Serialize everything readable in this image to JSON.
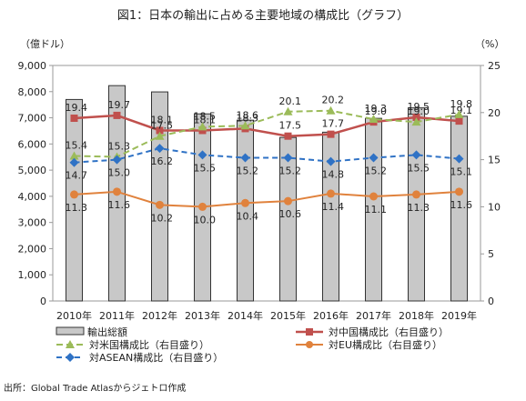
{
  "title": "図1：日本の輸出に占める主要地域の構成比（グラフ）",
  "unit_left": "（億ドル）",
  "unit_right": "（%）",
  "source": "出所：Global Trade Atlasからジェトロ作成",
  "colors": {
    "bar": "#c8c8c8",
    "china": "#c0504d",
    "usa": "#9bbb59",
    "eu": "#e0823d",
    "asean": "#2f72c5"
  },
  "chart_data": {
    "type": "bar+line",
    "categories": [
      "2010年",
      "2011年",
      "2012年",
      "2013年",
      "2014年",
      "2015年",
      "2016年",
      "2017年",
      "2018年",
      "2019年"
    ],
    "y_left": {
      "min": 0,
      "max": 9000,
      "step": 1000
    },
    "y_right": {
      "min": 0,
      "max": 25,
      "step": 5
    },
    "left_ticks": [
      "0",
      "1,000",
      "2,000",
      "3,000",
      "4,000",
      "5,000",
      "6,000",
      "7,000",
      "8,000",
      "9,000"
    ],
    "right_ticks": [
      "0",
      "5",
      "10",
      "15",
      "20",
      "25"
    ],
    "bars": {
      "name": "輸出総額",
      "values": [
        7700,
        8230,
        7990,
        7150,
        6910,
        6250,
        6450,
        6980,
        7380,
        7060
      ]
    },
    "series": [
      {
        "key": "china",
        "name": "対中国構成比（右目盛り）",
        "values": [
          19.4,
          19.7,
          18.1,
          18.1,
          18.3,
          17.5,
          17.7,
          19.0,
          19.5,
          19.1
        ],
        "labels": [
          "19.4",
          "19.7",
          "18.1",
          "18.1",
          "18.3",
          "17.5",
          "17.7",
          "19.0",
          "19.5",
          "19.1"
        ]
      },
      {
        "key": "usa",
        "name": "対米国構成比（右目盛り）",
        "values": [
          15.4,
          15.3,
          17.5,
          18.5,
          18.6,
          20.1,
          20.2,
          19.3,
          19.0,
          19.8
        ],
        "labels": [
          "15.4",
          "15.3",
          "17.5",
          "18.5",
          "18.6",
          "20.1",
          "20.2",
          "19.3",
          "19.0",
          "19.8"
        ]
      },
      {
        "key": "asean",
        "name": "対ASEAN構成比（右目盛り）",
        "values": [
          14.7,
          15.0,
          16.2,
          15.5,
          15.2,
          15.2,
          14.8,
          15.2,
          15.5,
          15.1
        ],
        "labels": [
          "14.7",
          "15.0",
          "16.2",
          "15.5",
          "15.2",
          "15.2",
          "14.8",
          "15.2",
          "15.5",
          "15.1"
        ]
      },
      {
        "key": "eu",
        "name": "対EU構成比（右目盛り）",
        "values": [
          11.3,
          11.6,
          10.2,
          10.0,
          10.4,
          10.6,
          11.4,
          11.1,
          11.3,
          11.6
        ],
        "labels": [
          "11.3",
          "11.6",
          "10.2",
          "10.0",
          "10.4",
          "10.6",
          "11.4",
          "11.1",
          "11.3",
          "11.6"
        ]
      }
    ],
    "legend_position": "bottom"
  }
}
